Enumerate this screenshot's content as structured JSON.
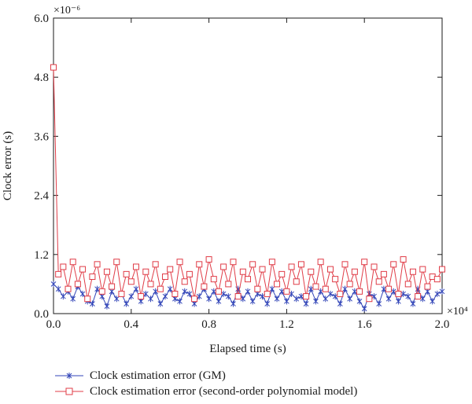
{
  "chart_data": {
    "type": "line",
    "xlabel": "Elapsed time (s)",
    "ylabel": "Clock error (s)",
    "x_exponent": "×10⁴",
    "y_exponent": "×10⁻⁶",
    "xlim": [
      0,
      20000
    ],
    "ylim": [
      0,
      6.0
    ],
    "xticks": [
      0,
      4000,
      8000,
      12000,
      16000,
      20000
    ],
    "xtick_labels": [
      "0.0",
      "0.4",
      "0.8",
      "1.2",
      "1.6",
      "2.0"
    ],
    "yticks": [
      0,
      1.2,
      2.4,
      3.6,
      4.8,
      6.0
    ],
    "ytick_labels": [
      "0.0",
      "1.2",
      "2.4",
      "3.6",
      "4.8",
      "6.0"
    ],
    "grid": false,
    "legend_position": "bottom",
    "series": [
      {
        "name": "Clock estimation error (GM)",
        "color": "#3346b8",
        "marker": "asterisk",
        "x": [
          0,
          250,
          500,
          750,
          1000,
          1250,
          1500,
          1750,
          2000,
          2250,
          2500,
          2750,
          3000,
          3250,
          3500,
          3750,
          4000,
          4250,
          4500,
          4750,
          5000,
          5250,
          5500,
          5750,
          6000,
          6250,
          6500,
          6750,
          7000,
          7250,
          7500,
          7750,
          8000,
          8250,
          8500,
          8750,
          9000,
          9250,
          9500,
          9750,
          10000,
          10250,
          10500,
          10750,
          11000,
          11250,
          11500,
          11750,
          12000,
          12250,
          12500,
          12750,
          13000,
          13250,
          13500,
          13750,
          14000,
          14250,
          14500,
          14750,
          15000,
          15250,
          15500,
          15750,
          16000,
          16250,
          16500,
          16750,
          17000,
          17250,
          17500,
          17750,
          18000,
          18250,
          18500,
          18750,
          19000,
          19250,
          19500,
          19750,
          20000
        ],
        "values": [
          0.6,
          0.5,
          0.35,
          0.45,
          0.3,
          0.55,
          0.4,
          0.25,
          0.2,
          0.5,
          0.35,
          0.15,
          0.45,
          0.3,
          0.4,
          0.2,
          0.35,
          0.5,
          0.25,
          0.4,
          0.3,
          0.45,
          0.2,
          0.35,
          0.5,
          0.3,
          0.25,
          0.45,
          0.4,
          0.2,
          0.35,
          0.5,
          0.3,
          0.45,
          0.25,
          0.4,
          0.35,
          0.2,
          0.5,
          0.3,
          0.45,
          0.25,
          0.4,
          0.35,
          0.2,
          0.5,
          0.3,
          0.45,
          0.25,
          0.4,
          0.3,
          0.35,
          0.2,
          0.5,
          0.25,
          0.45,
          0.3,
          0.4,
          0.35,
          0.2,
          0.5,
          0.3,
          0.45,
          0.25,
          0.1,
          0.4,
          0.35,
          0.2,
          0.5,
          0.3,
          0.45,
          0.25,
          0.4,
          0.35,
          0.2,
          0.5,
          0.3,
          0.45,
          0.25,
          0.4,
          0.45
        ]
      },
      {
        "name": "Clock estimation error (second-order polynomial model)",
        "color": "#e03c47",
        "marker": "square",
        "x": [
          0,
          250,
          500,
          750,
          1000,
          1250,
          1500,
          1750,
          2000,
          2250,
          2500,
          2750,
          3000,
          3250,
          3500,
          3750,
          4000,
          4250,
          4500,
          4750,
          5000,
          5250,
          5500,
          5750,
          6000,
          6250,
          6500,
          6750,
          7000,
          7250,
          7500,
          7750,
          8000,
          8250,
          8500,
          8750,
          9000,
          9250,
          9500,
          9750,
          10000,
          10250,
          10500,
          10750,
          11000,
          11250,
          11500,
          11750,
          12000,
          12250,
          12500,
          12750,
          13000,
          13250,
          13500,
          13750,
          14000,
          14250,
          14500,
          14750,
          15000,
          15250,
          15500,
          15750,
          16000,
          16250,
          16500,
          16750,
          17000,
          17250,
          17500,
          17750,
          18000,
          18250,
          18500,
          18750,
          19000,
          19250,
          19500,
          19750,
          20000
        ],
        "values": [
          5.0,
          0.8,
          0.95,
          0.5,
          1.05,
          0.6,
          0.9,
          0.3,
          0.75,
          1.0,
          0.45,
          0.85,
          0.55,
          1.05,
          0.4,
          0.8,
          0.65,
          0.95,
          0.35,
          0.85,
          0.6,
          1.0,
          0.5,
          0.75,
          0.9,
          0.4,
          1.05,
          0.65,
          0.8,
          0.3,
          1.0,
          0.55,
          1.1,
          0.7,
          0.45,
          0.95,
          0.6,
          1.05,
          0.35,
          0.85,
          0.7,
          1.0,
          0.5,
          0.9,
          0.4,
          1.05,
          0.6,
          0.8,
          0.45,
          0.95,
          0.65,
          1.0,
          0.35,
          0.85,
          0.55,
          1.05,
          0.5,
          0.9,
          0.7,
          0.4,
          1.0,
          0.6,
          0.85,
          0.45,
          1.05,
          0.3,
          0.95,
          0.65,
          0.8,
          0.5,
          1.0,
          0.4,
          1.1,
          0.6,
          0.85,
          0.35,
          0.9,
          0.55,
          0.75,
          0.7,
          0.9
        ]
      }
    ]
  }
}
